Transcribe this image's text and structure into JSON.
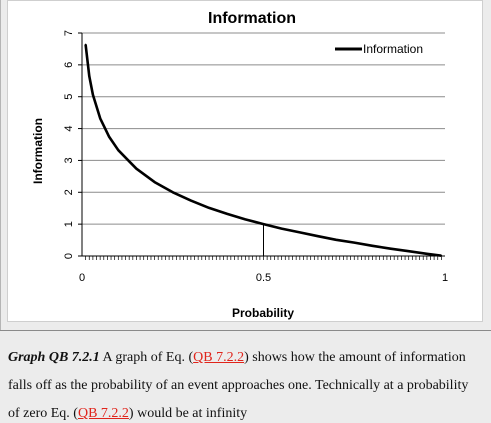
{
  "chart_data": {
    "type": "line",
    "title": "Information",
    "xlabel": "Probability",
    "ylabel": "Information",
    "xlim": [
      0,
      1
    ],
    "ylim": [
      0,
      7
    ],
    "x_ticks": [
      {
        "value": 0,
        "label": "0"
      },
      {
        "value": 0.5,
        "label": "0.5"
      },
      {
        "value": 1,
        "label": "1"
      }
    ],
    "y_ticks": [
      0,
      1,
      2,
      3,
      4,
      5,
      6,
      7
    ],
    "grid": "horizontal",
    "legend": "top-right",
    "series": [
      {
        "name": "Information",
        "color": "#000000",
        "x": [
          0.01,
          0.02,
          0.03,
          0.05,
          0.075,
          0.1,
          0.15,
          0.2,
          0.25,
          0.3,
          0.35,
          0.4,
          0.45,
          0.5,
          0.55,
          0.6,
          0.65,
          0.7,
          0.75,
          0.8,
          0.85,
          0.9,
          0.95,
          0.99
        ],
        "y": [
          6.64,
          5.64,
          5.06,
          4.32,
          3.74,
          3.32,
          2.74,
          2.32,
          2.0,
          1.74,
          1.51,
          1.32,
          1.15,
          1.0,
          0.86,
          0.74,
          0.62,
          0.51,
          0.42,
          0.32,
          0.23,
          0.15,
          0.07,
          0.01
        ]
      }
    ],
    "annotations": [
      {
        "type": "vertical-line",
        "x": 0.5,
        "y_from": 0,
        "y_to": 1.0
      }
    ]
  },
  "caption": {
    "label": "Graph QB 7.2.1",
    "text_1": " A graph of Eq. (",
    "ref_1": "QB 7.2.2",
    "text_2": ") shows how the amount of information falls off as the probability of an event approaches one. Technically at a probability of zero Eq. (",
    "ref_2": "QB 7.2.2",
    "text_3": ") would be at infinity"
  },
  "colors": {
    "reference_link": "#e0241b",
    "gridline": "#8c8c8c"
  }
}
